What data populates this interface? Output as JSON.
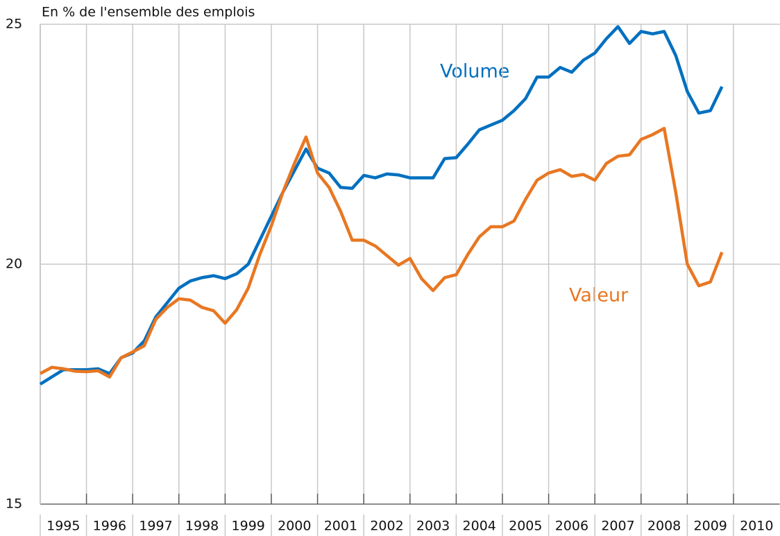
{
  "chart_data": {
    "type": "line",
    "y_label": "En % de l'ensemble des emplois",
    "categories": [
      "1995",
      "1996",
      "1997",
      "1998",
      "1999",
      "2000",
      "2001",
      "2002",
      "2003",
      "2004",
      "2005",
      "2006",
      "2007",
      "2008",
      "2009",
      "2010"
    ],
    "x": [
      1995,
      1995.25,
      1995.5,
      1995.75,
      1996,
      1996.25,
      1996.5,
      1996.75,
      1997,
      1997.25,
      1997.5,
      1997.75,
      1998,
      1998.25,
      1998.5,
      1998.75,
      1999,
      1999.25,
      1999.5,
      1999.75,
      2000,
      2000.25,
      2000.5,
      2000.75,
      2001,
      2001.25,
      2001.5,
      2001.75,
      2002,
      2002.25,
      2002.5,
      2002.75,
      2003,
      2003.25,
      2003.5,
      2003.75,
      2004,
      2004.25,
      2004.5,
      2004.75,
      2005,
      2005.25,
      2005.5,
      2005.75,
      2006,
      2006.25,
      2006.5,
      2006.75,
      2007,
      2007.25,
      2007.5,
      2007.75,
      2008,
      2008.25,
      2008.5,
      2008.75,
      2009,
      2009.25,
      2009.5,
      2009.75
    ],
    "xlim": [
      1995,
      2011
    ],
    "ylim": [
      15,
      25
    ],
    "yticks": [
      15,
      20,
      25
    ],
    "grid": true,
    "series": [
      {
        "name": "Volume",
        "color": "#0070c0",
        "values": [
          17.5,
          17.65,
          17.8,
          17.8,
          17.8,
          17.82,
          17.72,
          18.05,
          18.15,
          18.4,
          18.9,
          19.2,
          19.5,
          19.65,
          19.72,
          19.76,
          19.7,
          19.8,
          20.0,
          20.5,
          21.0,
          21.5,
          21.95,
          22.4,
          22.0,
          21.9,
          21.6,
          21.58,
          21.85,
          21.8,
          21.88,
          21.86,
          21.8,
          21.8,
          21.8,
          22.2,
          22.22,
          22.5,
          22.8,
          22.9,
          23.0,
          23.2,
          23.45,
          23.9,
          23.9,
          24.1,
          24.0,
          24.25,
          24.4,
          24.7,
          24.95,
          24.6,
          24.85,
          24.8,
          24.85,
          24.35,
          23.6,
          23.15,
          23.2,
          23.7
        ]
      },
      {
        "name": "Valeur",
        "color": "#e87722",
        "values": [
          17.72,
          17.85,
          17.82,
          17.77,
          17.76,
          17.78,
          17.65,
          18.05,
          18.17,
          18.3,
          18.85,
          19.1,
          19.28,
          19.25,
          19.1,
          19.03,
          18.77,
          19.05,
          19.5,
          20.2,
          20.8,
          21.5,
          22.1,
          22.65,
          21.9,
          21.6,
          21.1,
          20.5,
          20.5,
          20.38,
          20.18,
          19.98,
          20.12,
          19.7,
          19.45,
          19.72,
          19.78,
          20.2,
          20.57,
          20.78,
          20.78,
          20.9,
          21.35,
          21.75,
          21.9,
          21.97,
          21.83,
          21.87,
          21.75,
          22.1,
          22.25,
          22.28,
          22.6,
          22.7,
          22.83,
          21.5,
          20.0,
          19.55,
          19.63,
          20.25
        ]
      }
    ]
  }
}
